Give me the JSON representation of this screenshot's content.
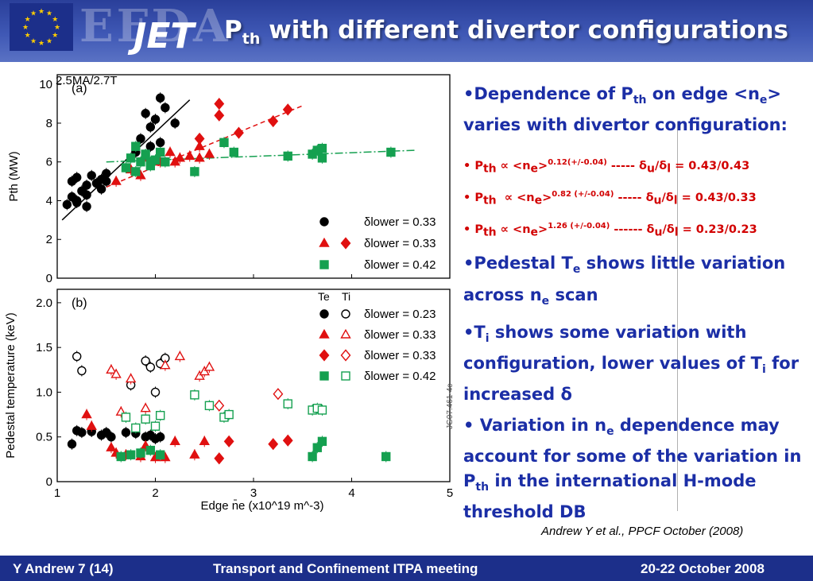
{
  "header": {
    "logo_text": "EFDA",
    "logo_jet": "JET",
    "title_main": "P",
    "title_sub": "th",
    "title_rest": " with different divertor configurations"
  },
  "bullets": [
    {
      "parts": [
        "•Dependence of P",
        "th",
        " on edge <n",
        "e",
        "> varies with divertor configuration:"
      ]
    },
    {
      "lines": [
        "• Pth ∝ <ne>0.12(+/-0.04) ----- δu/δl = 0.43/0.43",
        "• Pth ∝ <ne>0.82 (+/-0.04) ----- δu/δl = 0.43/0.33",
        "• Pth ∝ <ne>1.26 (+/-0.04) ------ δu/δl = 0.23/0.23"
      ]
    },
    {
      "parts": [
        "•Pedestal T",
        "e",
        " shows little variation across n",
        "e",
        " scan"
      ]
    },
    {
      "parts": [
        "•T",
        "i",
        " shows some variation with configuration, lower values of T",
        "i",
        " for increased δ"
      ]
    },
    {
      "parts": [
        "• Variation in n",
        "e",
        " dependence may account for some of the variation in P",
        "th",
        " in the international H-mode threshold DB"
      ]
    }
  ],
  "citation": "Andrew Y et al., PPCF October (2008)",
  "footer": {
    "left": "Y Andrew  7 (14)",
    "center": "Transport and Confinement ITPA meeting",
    "right": "20-22 October 2008"
  },
  "figure": {
    "top_label": "2.5MA/2.7T",
    "side_label": "JG07.461-4c"
  },
  "chart_data": [
    {
      "type": "scatter",
      "panel_label": "(a)",
      "xlabel": "Edge n̄e (x10^19 m^-3)",
      "ylabel": "Pth (MW)",
      "xlim": [
        1,
        5
      ],
      "ylim": [
        0,
        10.5
      ],
      "xticks": [
        "1",
        "2",
        "3",
        "4",
        "5"
      ],
      "yticks": [
        "0",
        "2",
        "4",
        "6",
        "8",
        "10"
      ],
      "legend": [
        "δlower = 0.33",
        "δlower = 0.33",
        "δlower = 0.42"
      ],
      "series": [
        {
          "color": "#000000",
          "marker": "circle",
          "x": [
            1.1,
            1.15,
            1.2,
            1.25,
            1.3,
            1.15,
            1.2,
            1.3,
            1.35,
            1.45,
            1.5,
            1.2,
            1.3,
            1.4,
            1.45,
            1.5,
            1.8,
            1.85,
            1.9,
            1.95,
            2.0,
            2.05,
            2.1,
            2.2,
            2.05,
            1.95
          ],
          "y": [
            3.8,
            4.2,
            3.9,
            4.5,
            3.7,
            5.0,
            5.2,
            4.8,
            5.3,
            5.1,
            5.4,
            4.0,
            4.3,
            4.9,
            4.6,
            5.0,
            6.5,
            7.2,
            8.5,
            7.8,
            8.2,
            9.3,
            8.8,
            8.0,
            7.0,
            6.8
          ]
        },
        {
          "color": "#e01010",
          "marker": "triangle",
          "x": [
            1.6,
            1.75,
            1.9,
            2.05,
            2.15,
            2.25,
            2.35,
            2.45,
            2.55,
            2.45,
            2.2,
            1.85
          ],
          "y": [
            5.0,
            5.6,
            6.3,
            6.0,
            6.5,
            6.2,
            6.3,
            6.8,
            6.4,
            6.2,
            6.0,
            5.3
          ]
        },
        {
          "color": "#e01010",
          "marker": "diamond",
          "x": [
            2.45,
            2.65,
            2.85,
            3.2,
            3.35,
            2.65
          ],
          "y": [
            7.2,
            8.4,
            7.5,
            8.1,
            8.7,
            9.0
          ]
        },
        {
          "color": "#15a050",
          "marker": "square",
          "x": [
            1.7,
            1.75,
            1.8,
            1.85,
            1.9,
            1.95,
            2.0,
            2.05,
            2.1,
            2.4,
            2.7,
            2.8,
            3.35,
            3.6,
            3.65,
            3.7,
            3.7,
            4.4,
            1.8,
            1.95
          ],
          "y": [
            5.7,
            6.2,
            5.5,
            6.0,
            6.4,
            5.8,
            6.1,
            6.5,
            6.0,
            5.5,
            7.0,
            6.5,
            6.3,
            6.4,
            6.6,
            6.7,
            6.2,
            6.5,
            6.8,
            6.0
          ]
        }
      ],
      "fits": [
        {
          "color": "#000000",
          "style": "solid",
          "x": [
            1.05,
            2.35
          ],
          "y": [
            3.0,
            9.2
          ]
        },
        {
          "color": "#e01010",
          "style": "dashed",
          "x": [
            1.5,
            3.5
          ],
          "y": [
            4.7,
            8.9
          ]
        },
        {
          "color": "#15a050",
          "style": "dashdot",
          "x": [
            1.5,
            4.65
          ],
          "y": [
            6.0,
            6.6
          ]
        }
      ]
    },
    {
      "type": "scatter",
      "panel_label": "(b)",
      "xlabel": "Edge n̄e (x10^19 m^-3)",
      "ylabel": "Pedestal temperature (keV)",
      "xlim": [
        1,
        5
      ],
      "ylim": [
        0,
        2.15
      ],
      "xticks": [
        "1",
        "2",
        "3",
        "4",
        "5"
      ],
      "yticks": [
        "0",
        "0.5",
        "1.0",
        "1.5",
        "2.0"
      ],
      "legend_header": [
        "Te",
        "Ti"
      ],
      "legend": [
        "δlower = 0.23",
        "δlower = 0.33",
        "δlower = 0.33",
        "δlower = 0.42"
      ],
      "series": [
        {
          "color": "#000000",
          "marker": "circle",
          "filled": true,
          "x": [
            1.15,
            1.2,
            1.25,
            1.35,
            1.45,
            1.5,
            1.55,
            1.7,
            1.8,
            1.9,
            1.95,
            2.0,
            2.05
          ],
          "y": [
            0.42,
            0.57,
            0.55,
            0.56,
            0.52,
            0.55,
            0.5,
            0.55,
            0.54,
            0.5,
            0.52,
            0.48,
            0.5
          ]
        },
        {
          "color": "#000000",
          "marker": "circle",
          "filled": false,
          "x": [
            1.2,
            1.25,
            1.75,
            1.9,
            1.95,
            2.0,
            2.05,
            2.1
          ],
          "y": [
            1.4,
            1.24,
            1.08,
            1.35,
            1.28,
            1.0,
            1.32,
            1.38
          ]
        },
        {
          "color": "#e01010",
          "marker": "triangle",
          "filled": true,
          "x": [
            1.3,
            1.55,
            1.6,
            1.7,
            1.85,
            2.0,
            2.1,
            2.2,
            2.4,
            2.5,
            1.35,
            1.9
          ],
          "y": [
            0.75,
            0.38,
            0.32,
            0.3,
            0.28,
            0.27,
            0.27,
            0.45,
            0.3,
            0.45,
            0.62,
            0.4
          ]
        },
        {
          "color": "#e01010",
          "marker": "triangle",
          "filled": false,
          "x": [
            1.55,
            1.6,
            1.75,
            2.1,
            2.25,
            2.45,
            2.5,
            2.55,
            1.65,
            1.9
          ],
          "y": [
            1.25,
            1.2,
            1.15,
            1.3,
            1.4,
            1.18,
            1.23,
            1.28,
            0.78,
            0.82
          ]
        },
        {
          "color": "#e01010",
          "marker": "diamond",
          "filled": true,
          "x": [
            2.65,
            2.75,
            3.2,
            3.35
          ],
          "y": [
            0.26,
            0.45,
            0.42,
            0.46
          ]
        },
        {
          "color": "#e01010",
          "marker": "diamond",
          "filled": false,
          "x": [
            2.65,
            3.25
          ],
          "y": [
            0.85,
            0.98
          ]
        },
        {
          "color": "#15a050",
          "marker": "square",
          "filled": true,
          "x": [
            1.65,
            1.75,
            1.85,
            1.95,
            2.05,
            3.6,
            3.65,
            3.7,
            4.35
          ],
          "y": [
            0.28,
            0.3,
            0.32,
            0.35,
            0.3,
            0.28,
            0.38,
            0.45,
            0.28
          ]
        },
        {
          "color": "#15a050",
          "marker": "square",
          "filled": false,
          "x": [
            1.7,
            1.8,
            1.9,
            2.0,
            2.05,
            2.4,
            2.55,
            2.7,
            2.75,
            3.35,
            3.6,
            3.65,
            3.7
          ],
          "y": [
            0.72,
            0.6,
            0.7,
            0.62,
            0.74,
            0.97,
            0.85,
            0.72,
            0.75,
            0.87,
            0.8,
            0.82,
            0.8
          ]
        }
      ]
    }
  ],
  "colors": {
    "header_blue": "#2a3f9a",
    "footer_blue": "#1c2f8a",
    "text_blue": "#1b2ea6",
    "red": "#d20000",
    "green": "#15a050"
  }
}
